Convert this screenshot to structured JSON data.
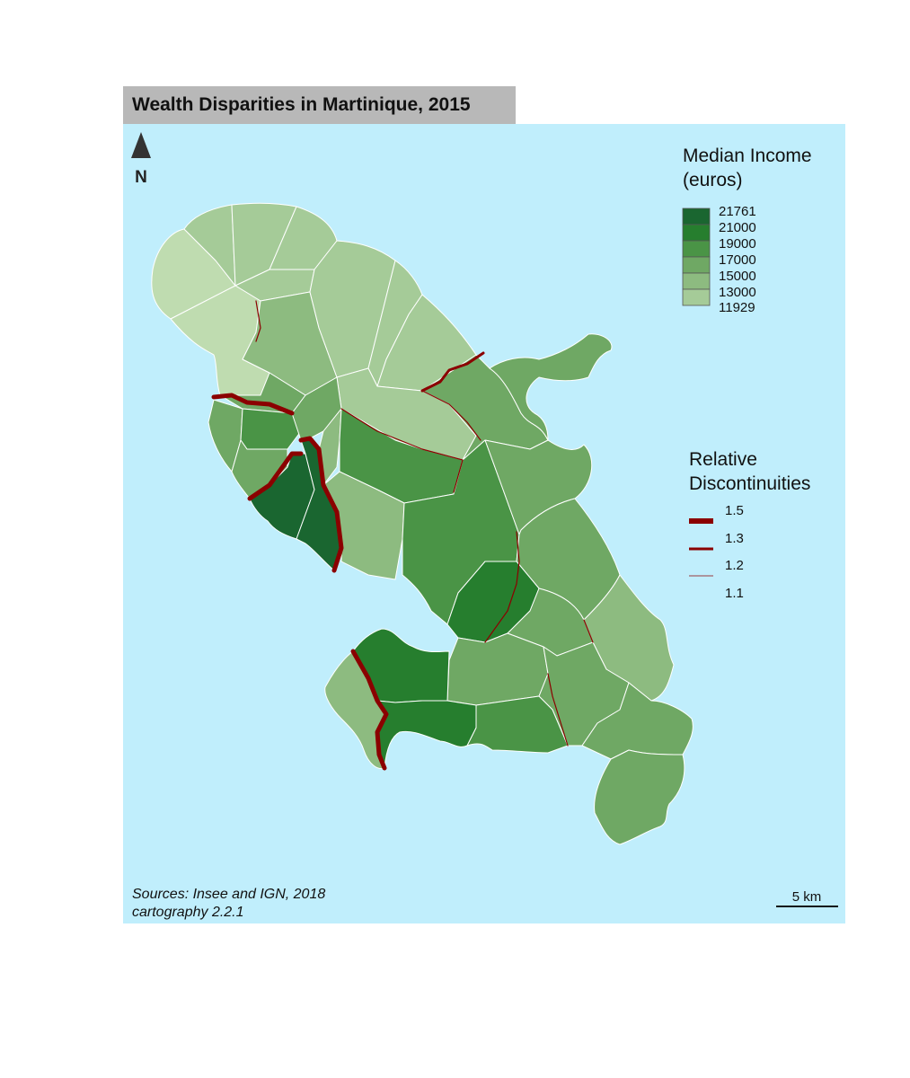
{
  "title": "Wealth Disparities in Martinique, 2015",
  "north_arrow": {
    "label": "N"
  },
  "legend_income": {
    "title_line1": "Median Income",
    "title_line2": "(euros)",
    "breaks": [
      "21761",
      "21000",
      "19000",
      "17000",
      "15000",
      "13000",
      "11929"
    ],
    "colors": [
      "#1a6630",
      "#267e2e",
      "#4a9446",
      "#6fa864",
      "#8dbb80",
      "#a5cb98",
      "#bfdcb0"
    ]
  },
  "legend_discontinuities": {
    "title_line1": "Relative",
    "title_line2": "Discontinuities",
    "values": [
      "1.5",
      "1.3",
      "1.2",
      "1.1"
    ],
    "color": "#8b0000"
  },
  "colors": {
    "sea": "#c0eefc",
    "title_bg": "#b8b8b8",
    "boundary": "#ffffff",
    "discontinuity": "#8b0000"
  },
  "sources_line1": "Sources: Insee and IGN, 2018",
  "sources_line2": "cartography 2.2.1",
  "scale_bar": {
    "label": "5 km"
  }
}
